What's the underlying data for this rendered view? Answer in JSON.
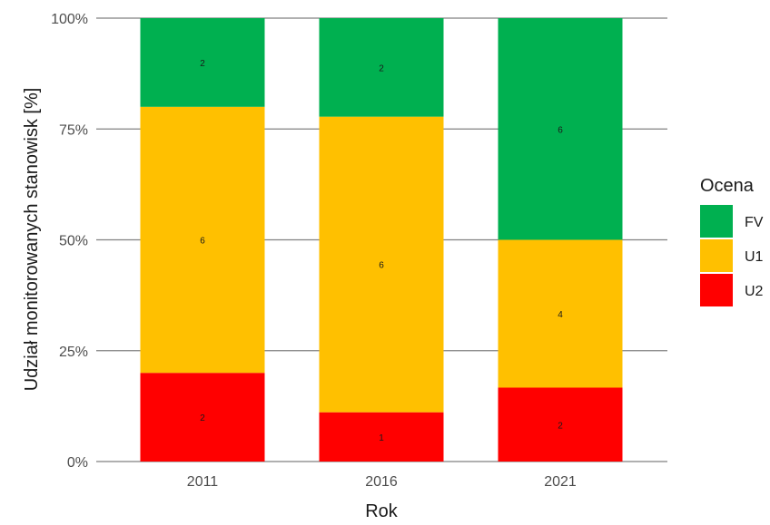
{
  "chart_data": {
    "type": "bar",
    "stacked": true,
    "normalized": true,
    "categories": [
      "2011",
      "2016",
      "2021"
    ],
    "series": [
      {
        "name": "U2",
        "color": "#ff0000",
        "values": [
          2,
          1,
          2
        ]
      },
      {
        "name": "U1",
        "color": "#ffc000",
        "values": [
          6,
          6,
          4
        ]
      },
      {
        "name": "FV",
        "color": "#00b050",
        "values": [
          2,
          2,
          6
        ]
      }
    ],
    "xlabel": "Rok",
    "ylabel": "Udział monitorowanych stanowisk [%]",
    "ylim": [
      0,
      1
    ],
    "yticks": [
      "0%",
      "25%",
      "50%",
      "75%",
      "100%"
    ],
    "grid": true,
    "legend": {
      "title": "Ocena",
      "position": "right",
      "order": [
        "FV",
        "U1",
        "U2"
      ]
    }
  }
}
